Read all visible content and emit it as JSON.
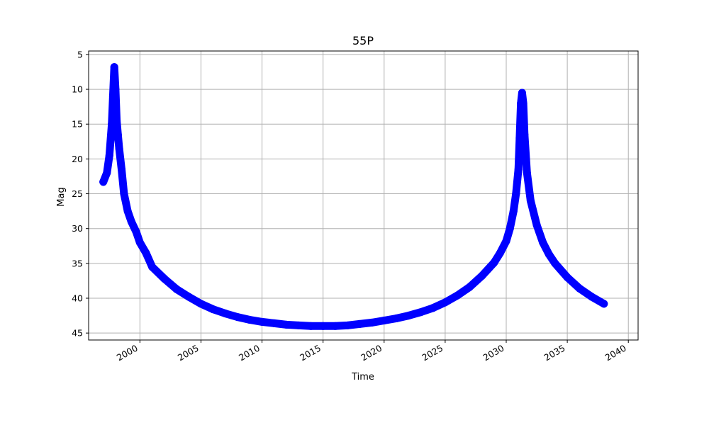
{
  "chart_data": {
    "type": "scatter",
    "title": "55P",
    "xlabel": "Time",
    "ylabel": "Mag",
    "x_ticks": [
      "2000",
      "2005",
      "2010",
      "2015",
      "2020",
      "2025",
      "2030",
      "2035",
      "2040"
    ],
    "y_ticks": [
      "5",
      "10",
      "15",
      "20",
      "25",
      "30",
      "35",
      "40",
      "45"
    ],
    "xlim": [
      1995.8,
      2040.8
    ],
    "ylim": [
      46,
      4.5
    ],
    "y_inverted": true,
    "grid": true,
    "marker_color": "#0000ff",
    "series": [
      {
        "x": [
          1997.0,
          1997.3,
          1997.5,
          1997.7,
          1997.8,
          1997.9,
          1998.0,
          1998.1,
          1998.2,
          1998.3,
          1998.5,
          1998.7,
          1999.0,
          1999.3,
          1999.7,
          2000.0,
          2000.5,
          2001.0,
          2002.0,
          2003.0,
          2004.0,
          2005.0,
          2006.0,
          2007.0,
          2008.0,
          2009.0,
          2010.0,
          2011.0,
          2012.0,
          2013.0,
          2014.0,
          2015.0,
          2016.0,
          2017.0,
          2018.0,
          2019.0,
          2020.0,
          2021.0,
          2022.0,
          2023.0,
          2024.0,
          2025.0,
          2026.0,
          2027.0,
          2028.0,
          2029.0,
          2029.5,
          2030.0,
          2030.3,
          2030.6,
          2030.8,
          2031.0,
          2031.1,
          2031.2,
          2031.3,
          2031.4,
          2031.5,
          2031.7,
          2032.0,
          2032.5,
          2033.0,
          2033.5,
          2034.0,
          2035.0,
          2036.0,
          2037.0,
          2038.0
        ],
        "y": [
          23.3,
          22.0,
          19.5,
          15.0,
          11.0,
          6.8,
          10.0,
          14.5,
          16.5,
          18.5,
          21.5,
          25.0,
          27.5,
          29.0,
          30.5,
          32.0,
          33.5,
          35.5,
          37.2,
          38.7,
          39.8,
          40.8,
          41.6,
          42.2,
          42.7,
          43.1,
          43.4,
          43.6,
          43.8,
          43.9,
          44.0,
          44.0,
          44.0,
          43.9,
          43.7,
          43.5,
          43.2,
          42.9,
          42.5,
          42.0,
          41.4,
          40.6,
          39.6,
          38.4,
          36.8,
          34.9,
          33.5,
          31.8,
          30.0,
          27.5,
          25.0,
          21.5,
          17.0,
          12.0,
          10.5,
          12.0,
          16.5,
          22.0,
          26.0,
          29.5,
          32.0,
          33.7,
          35.0,
          37.0,
          38.6,
          39.8,
          40.8
        ]
      }
    ]
  }
}
